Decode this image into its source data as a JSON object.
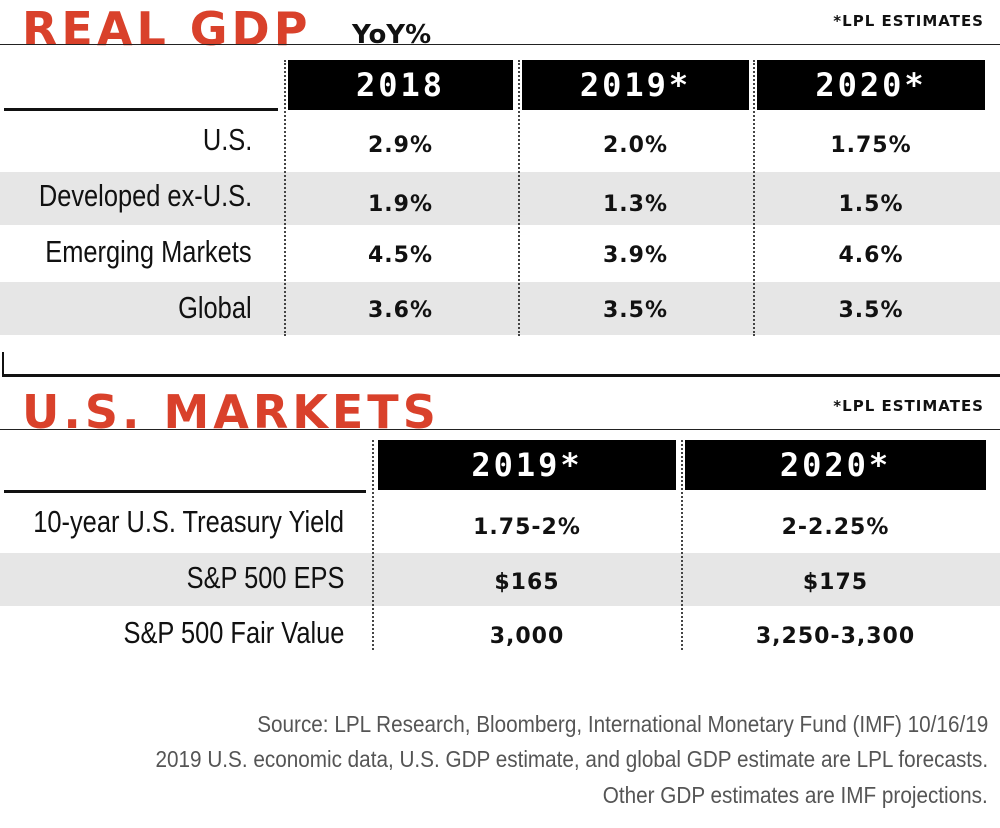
{
  "gdp": {
    "title": "REAL GDP",
    "subtitle": "YoY%",
    "estimates_note": "*LPL ESTIMATES",
    "columns": [
      "2018",
      "2019*",
      "2020*"
    ],
    "rows": [
      {
        "label": "U.S.",
        "values": [
          "2.9%",
          "2.0%",
          "1.75%"
        ]
      },
      {
        "label": "Developed ex-U.S.",
        "values": [
          "1.9%",
          "1.3%",
          "1.5%"
        ]
      },
      {
        "label": "Emerging Markets",
        "values": [
          "4.5%",
          "3.9%",
          "4.6%"
        ]
      },
      {
        "label": "Global",
        "values": [
          "3.6%",
          "3.5%",
          "3.5%"
        ]
      }
    ]
  },
  "markets": {
    "title": "U.S. MARKETS",
    "estimates_note": "*LPL ESTIMATES",
    "columns": [
      "2019*",
      "2020*"
    ],
    "rows": [
      {
        "label": "10-year U.S. Treasury Yield",
        "values": [
          "1.75-2%",
          "2-2.25%"
        ]
      },
      {
        "label": "S&P 500 EPS",
        "values": [
          "$165",
          "$175"
        ]
      },
      {
        "label": "S&P 500 Fair Value",
        "values": [
          "3,000",
          "3,250-3,300"
        ]
      }
    ]
  },
  "footer": {
    "line1": "Source: LPL Research, Bloomberg, International Monetary Fund (IMF) 10/16/19",
    "line2": "2019 U.S. economic data, U.S. GDP estimate, and global GDP estimate are LPL forecasts.",
    "line3": "Other GDP estimates are IMF projections."
  }
}
